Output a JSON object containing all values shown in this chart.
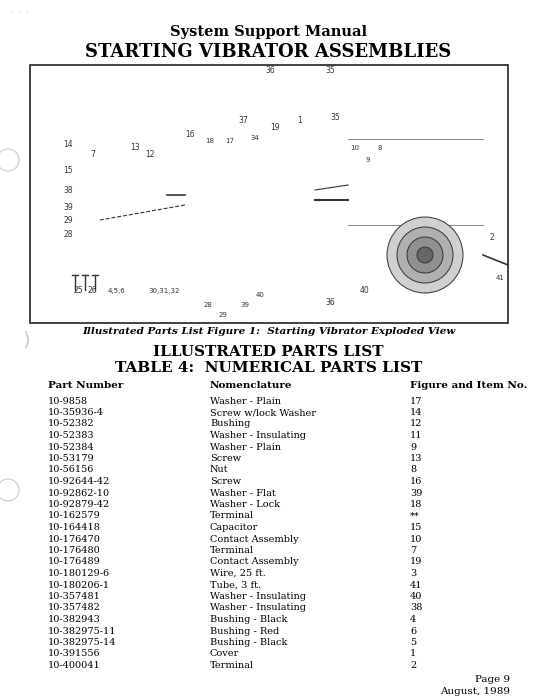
{
  "title_line1": "System Support Manual",
  "title_line2": "STARTING VIBRATOR ASSEMBLIES",
  "diagram_caption": "Illustrated Parts List Figure 1:  Starting Vibrator Exploded View",
  "parts_list_title1": "ILLUSTRATED PARTS LIST",
  "parts_list_title2": "TABLE 4:  NUMERICAL PARTS LIST",
  "col_headers": [
    "Part Number",
    "Nomenclature",
    "Figure and Item No."
  ],
  "parts": [
    [
      "10-9858",
      "Washer - Plain",
      "17"
    ],
    [
      "10-35936-4",
      "Screw w/lock Washer",
      "14"
    ],
    [
      "10-52382",
      "Bushing",
      "12"
    ],
    [
      "10-52383",
      "Washer - Insulating",
      "11"
    ],
    [
      "10-52384",
      "Washer - Plain",
      "9"
    ],
    [
      "10-53179",
      "Screw",
      "13"
    ],
    [
      "10-56156",
      "Nut",
      "8"
    ],
    [
      "10-92644-42",
      "Screw",
      "16"
    ],
    [
      "10-92862-10",
      "Washer - Flat",
      "39"
    ],
    [
      "10-92879-42",
      "Washer - Lock",
      "18"
    ],
    [
      "10-162579",
      "Terminal",
      "**"
    ],
    [
      "10-164418",
      "Capacitor",
      "15"
    ],
    [
      "10-176470",
      "Contact Assembly",
      "10"
    ],
    [
      "10-176480",
      "Terminal",
      "7"
    ],
    [
      "10-176489",
      "Contact Assembly",
      "19"
    ],
    [
      "10-180129-6",
      "Wire, 25 ft.",
      "3"
    ],
    [
      "10-180206-1",
      "Tube, 3 ft.",
      "41"
    ],
    [
      "10-357481",
      "Washer - Insulating",
      "40"
    ],
    [
      "10-357482",
      "Washer - Insulating",
      "38"
    ],
    [
      "10-382943",
      "Bushing - Black",
      "4"
    ],
    [
      "10-382975-11",
      "Bushing - Red",
      "6"
    ],
    [
      "10-382975-14",
      "Bushing - Black",
      "5"
    ],
    [
      "10-391556",
      "Cover",
      "1"
    ],
    [
      "10-400041",
      "Terminal",
      "2"
    ]
  ],
  "page_info_line1": "Page 9",
  "page_info_line2": "August, 1989",
  "bg_color": "#ffffff",
  "text_color": "#000000",
  "diagram_box_color": "#000000"
}
